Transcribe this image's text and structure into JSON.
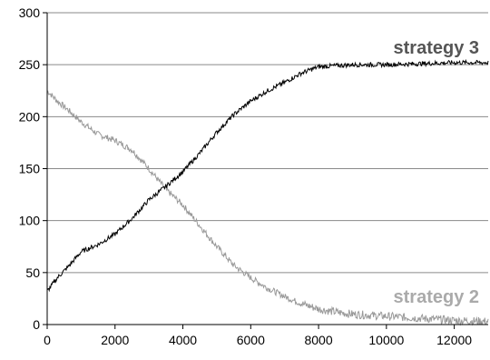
{
  "chart_data": {
    "type": "line",
    "xlim": [
      0,
      13000
    ],
    "ylim": [
      0,
      300
    ],
    "x_ticks": [
      0,
      2000,
      4000,
      6000,
      8000,
      10000,
      12000
    ],
    "y_ticks": [
      0,
      50,
      100,
      150,
      200,
      250,
      300
    ],
    "grid": "horizontal",
    "legend": "inline labels near line ends",
    "series": [
      {
        "name": "strategy 3",
        "color": "#000000",
        "x": [
          0,
          300,
          600,
          1000,
          1500,
          2000,
          2500,
          3000,
          3500,
          4000,
          4500,
          5000,
          5500,
          6000,
          6500,
          7000,
          7500,
          8000,
          8500,
          9000,
          9500,
          10000,
          11000,
          12000,
          13000
        ],
        "y": [
          32,
          45,
          55,
          70,
          77,
          87,
          102,
          120,
          133,
          147,
          165,
          185,
          202,
          215,
          225,
          233,
          242,
          248,
          249,
          250,
          250,
          250,
          251,
          252,
          252
        ]
      },
      {
        "name": "strategy 2",
        "color": "#999999",
        "x": [
          0,
          300,
          600,
          1000,
          1500,
          2000,
          2500,
          3000,
          3500,
          4000,
          4500,
          5000,
          5500,
          6000,
          6500,
          7000,
          7500,
          8000,
          8500,
          9000,
          10000,
          11000,
          12000,
          13000
        ],
        "y": [
          225,
          215,
          207,
          195,
          183,
          177,
          168,
          150,
          130,
          115,
          95,
          75,
          57,
          45,
          35,
          27,
          20,
          15,
          12,
          10,
          8,
          6,
          4,
          3
        ]
      }
    ]
  }
}
